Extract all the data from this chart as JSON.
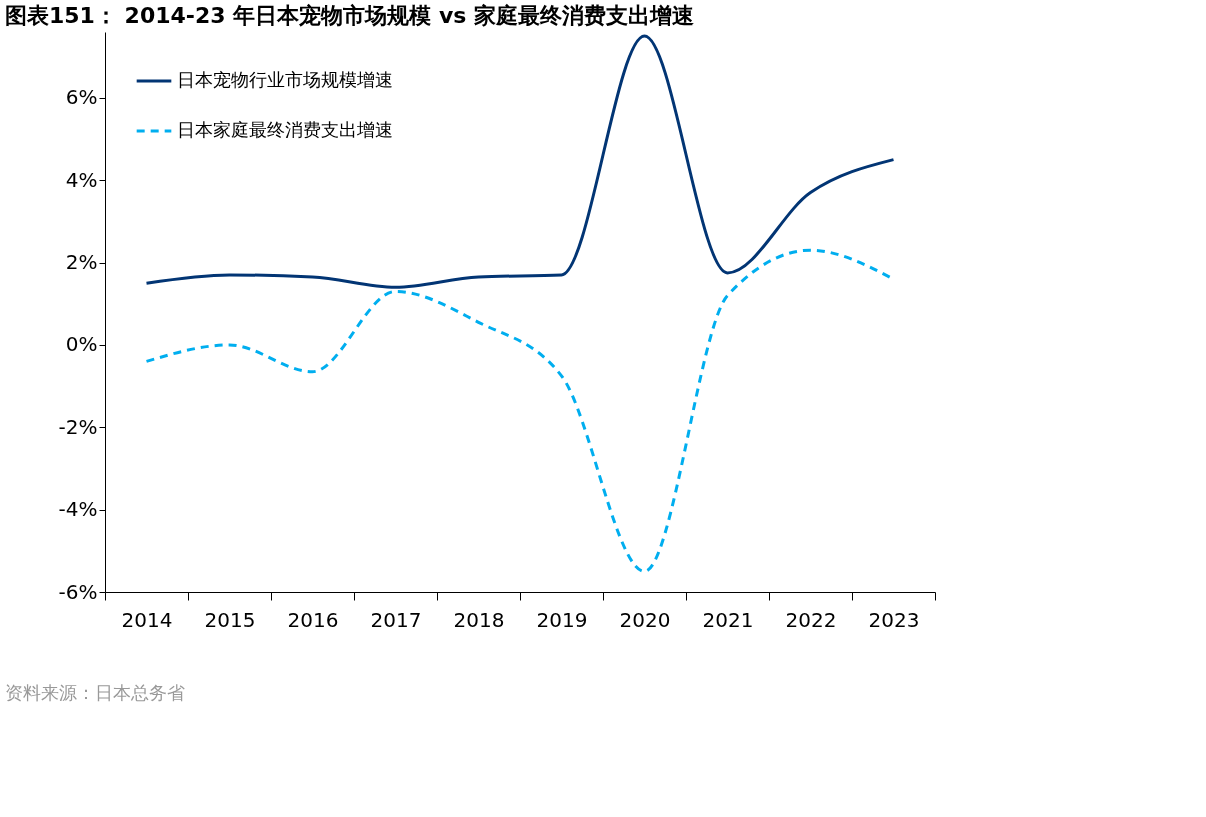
{
  "chart_data": {
    "type": "line",
    "title": "图表151： 2014-23 年日本宠物市场规模 vs 家庭最终消费支出增速",
    "categories": [
      "2014",
      "2015",
      "2016",
      "2017",
      "2018",
      "2019",
      "2020",
      "2021",
      "2022",
      "2023"
    ],
    "series": [
      {
        "name": "日本宠物行业市场规模增速",
        "color": "#023574",
        "line_style": "solid",
        "values": [
          1.5,
          1.7,
          1.65,
          1.4,
          1.65,
          1.7,
          7.5,
          1.75,
          3.7,
          4.5
        ]
      },
      {
        "name": "日本家庭最终消费支出增速",
        "color": "#00aeef",
        "line_style": "dashed",
        "values": [
          -0.4,
          0.0,
          -0.65,
          1.3,
          0.55,
          -0.75,
          -5.5,
          1.2,
          2.3,
          1.6
        ]
      }
    ],
    "ylim": [
      -6,
      7.6
    ],
    "yticks": [
      {
        "value": -6,
        "label": "-6%"
      },
      {
        "value": -4,
        "label": "-4%"
      },
      {
        "value": -2,
        "label": "-2%"
      },
      {
        "value": 0,
        "label": "0%"
      },
      {
        "value": 2,
        "label": "2%"
      },
      {
        "value": 4,
        "label": "4%"
      },
      {
        "value": 6,
        "label": "6%"
      }
    ],
    "grid": false,
    "legend": "top left",
    "marker": "none",
    "annotations": [
      "资料来源：日本总务省"
    ]
  }
}
